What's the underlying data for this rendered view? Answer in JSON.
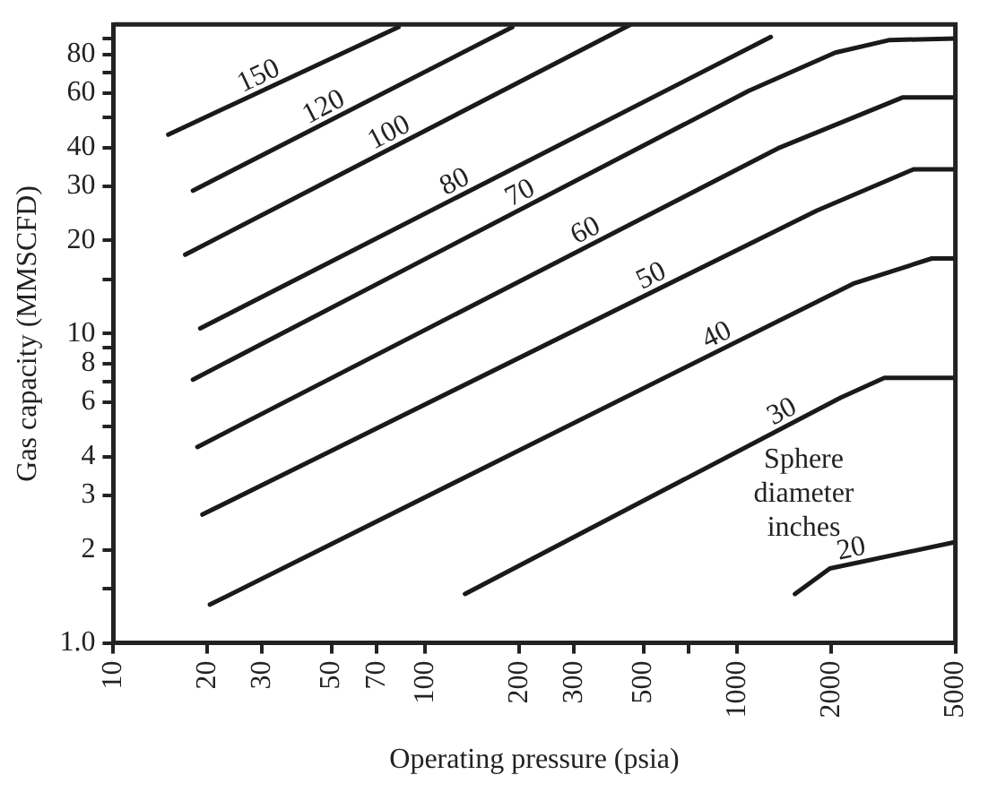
{
  "chart_data": {
    "type": "line",
    "xlabel": "Operating pressure (psia)",
    "ylabel": "Gas capacity (MMSCFD)",
    "legend_title": "Sphere diameter inches",
    "log": "xy",
    "grid": false,
    "legend": false,
    "marker": "none",
    "line_style": "solid",
    "xlim": [
      10,
      5000
    ],
    "ylim": [
      1,
      100
    ],
    "xticks": [
      10,
      20,
      30,
      50,
      70,
      100,
      200,
      300,
      500,
      {
        "value": 700,
        "label": null
      },
      1000,
      2000,
      5000
    ],
    "yticks": [
      {
        "value": 1,
        "label": "1.0"
      },
      {
        "value": 1.5,
        "label": null
      },
      2,
      3,
      4,
      {
        "value": 5,
        "label": null
      },
      6,
      {
        "value": 7,
        "label": null
      },
      8,
      {
        "value": 9,
        "label": null
      },
      10,
      {
        "value": 15,
        "label": null
      },
      20,
      30,
      40,
      {
        "value": 50,
        "label": null
      },
      60,
      {
        "value": 70,
        "label": null
      },
      80,
      {
        "value": 90,
        "label": null
      }
    ],
    "series": [
      {
        "name": "150",
        "color": "#1a1a1a",
        "x": [
          15,
          82
        ],
        "values": [
          44,
          98
        ]
      },
      {
        "name": "120",
        "color": "#1a1a1a",
        "x": [
          18,
          190
        ],
        "values": [
          29,
          98
        ]
      },
      {
        "name": "100",
        "color": "#1a1a1a",
        "x": [
          17,
          456
        ],
        "values": [
          18,
          100
        ]
      },
      {
        "name": "80",
        "color": "#1a1a1a",
        "x": [
          19,
          1280
        ],
        "values": [
          10.4,
          91
        ]
      },
      {
        "name": "70",
        "color": "#1a1a1a",
        "x": [
          18,
          1090,
          2060,
          3080,
          5000
        ],
        "values": [
          7.1,
          61,
          81,
          89,
          90
        ]
      },
      {
        "name": "60",
        "color": "#1a1a1a",
        "x": [
          18.6,
          1370,
          3380,
          5000
        ],
        "values": [
          4.3,
          40,
          58,
          58
        ]
      },
      {
        "name": "50",
        "color": "#1a1a1a",
        "x": [
          19.3,
          1800,
          3670,
          5000
        ],
        "values": [
          2.6,
          25,
          34,
          34
        ]
      },
      {
        "name": "40",
        "color": "#1a1a1a",
        "x": [
          20.4,
          2350,
          4200,
          5000
        ],
        "values": [
          1.33,
          14.5,
          17.5,
          17.5
        ]
      },
      {
        "name": "30",
        "color": "#1a1a1a",
        "x": [
          134,
          2140,
          2960,
          5000
        ],
        "values": [
          1.44,
          6.2,
          7.2,
          7.2
        ]
      },
      {
        "name": "20",
        "color": "#1a1a1a",
        "x": [
          1530,
          1980,
          5000
        ],
        "values": [
          1.44,
          1.74,
          2.12
        ]
      }
    ]
  }
}
